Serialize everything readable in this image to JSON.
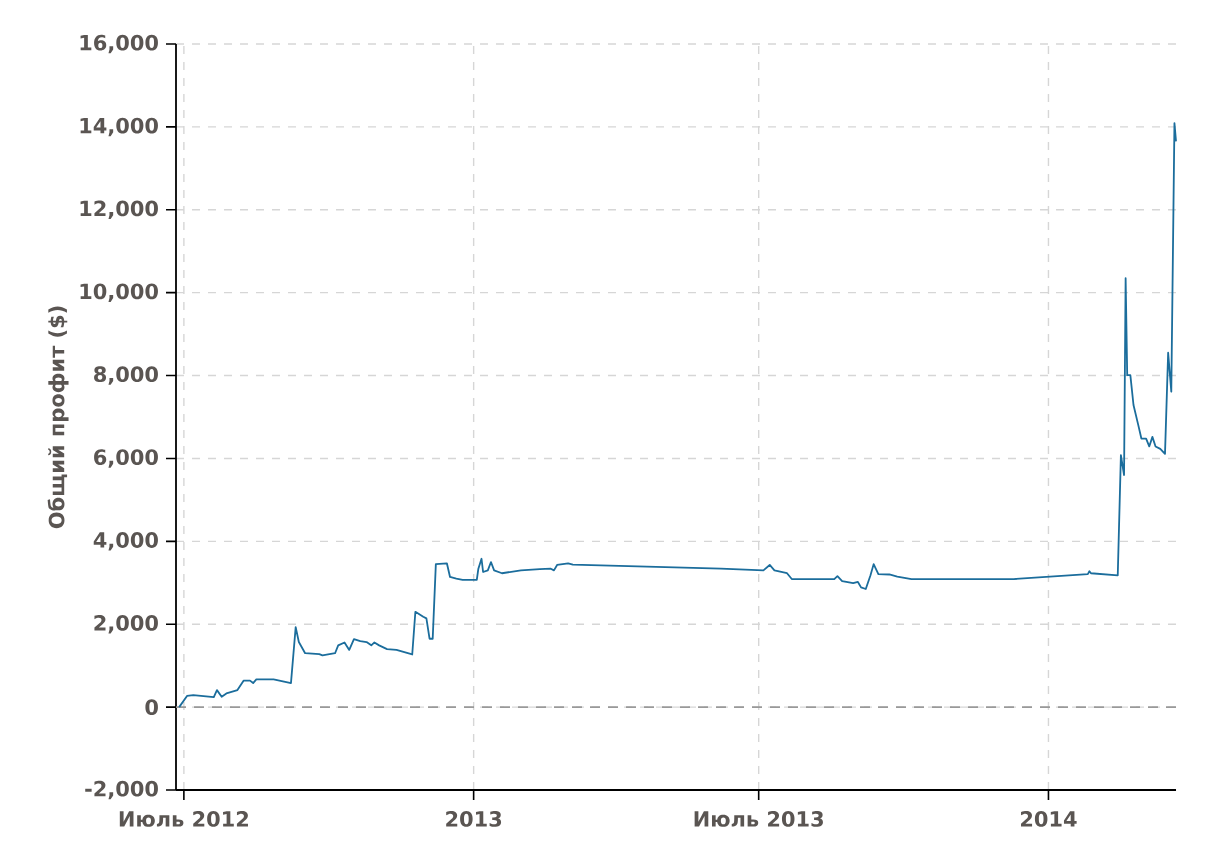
{
  "chart_data": {
    "type": "line",
    "ylabel": "Общий профит ($)",
    "color": "#1b6d9c",
    "x": [
      "2012-06-28",
      "2012-07-03",
      "2012-07-07",
      "2012-07-20",
      "2012-07-22",
      "2012-07-25",
      "2012-07-28",
      "2012-08-04",
      "2012-08-08",
      "2012-08-12",
      "2012-08-14",
      "2012-08-16",
      "2012-08-27",
      "2012-09-07",
      "2012-09-10",
      "2012-09-12",
      "2012-09-16",
      "2012-09-25",
      "2012-09-27",
      "2012-10-05",
      "2012-10-07",
      "2012-10-11",
      "2012-10-14",
      "2012-10-17",
      "2012-10-21",
      "2012-10-25",
      "2012-10-28",
      "2012-10-30",
      "2012-11-02",
      "2012-11-07",
      "2012-11-13",
      "2012-11-23",
      "2012-11-25",
      "2012-11-30",
      "2012-12-02",
      "2012-12-04",
      "2012-12-06",
      "2012-12-08",
      "2012-12-15",
      "2012-12-17",
      "2012-12-21",
      "2012-12-25",
      "2013-01-03",
      "2013-01-04",
      "2013-01-06",
      "2013-01-07",
      "2013-01-10",
      "2013-01-12",
      "2013-01-14",
      "2013-01-19",
      "2013-01-31",
      "2013-02-12",
      "2013-02-19",
      "2013-02-21",
      "2013-02-23",
      "2013-03-02",
      "2013-03-05",
      "2013-06-07",
      "2013-07-04",
      "2013-07-08",
      "2013-07-11",
      "2013-07-19",
      "2013-07-22",
      "2013-08-18",
      "2013-08-20",
      "2013-08-23",
      "2013-08-30",
      "2013-09-02",
      "2013-09-04",
      "2013-09-07",
      "2013-09-10",
      "2013-09-12",
      "2013-09-15",
      "2013-09-22",
      "2013-09-27",
      "2013-10-06",
      "2013-12-10",
      "2014-01-26",
      "2014-01-27",
      "2014-01-28",
      "2014-02-14",
      "2014-02-16",
      "2014-02-18",
      "2014-02-19",
      "2014-02-20",
      "2014-02-22",
      "2014-02-24",
      "2014-02-27",
      "2014-03-01",
      "2014-03-04",
      "2014-03-06",
      "2014-03-08",
      "2014-03-10",
      "2014-03-13",
      "2014-03-16",
      "2014-03-18",
      "2014-03-20",
      "2014-03-22",
      "2014-03-23"
    ],
    "values": [
      0,
      270,
      290,
      240,
      410,
      250,
      330,
      410,
      640,
      640,
      580,
      670,
      670,
      580,
      1930,
      1570,
      1300,
      1280,
      1250,
      1300,
      1490,
      1560,
      1380,
      1640,
      1590,
      1570,
      1490,
      1560,
      1490,
      1400,
      1380,
      1270,
      2300,
      2180,
      2140,
      1650,
      1650,
      3450,
      3470,
      3140,
      3100,
      3070,
      3070,
      3340,
      3580,
      3260,
      3300,
      3500,
      3300,
      3230,
      3300,
      3330,
      3340,
      3300,
      3430,
      3470,
      3440,
      3340,
      3300,
      3430,
      3300,
      3230,
      3090,
      3090,
      3160,
      3040,
      2990,
      3020,
      2890,
      2850,
      3180,
      3450,
      3210,
      3200,
      3150,
      3090,
      3090,
      3210,
      3280,
      3230,
      3180,
      6080,
      5600,
      10350,
      8010,
      8010,
      7290,
      6810,
      6480,
      6480,
      6290,
      6520,
      6290,
      6230,
      6110,
      8550,
      7610,
      14090,
      13650
    ],
    "xlim": [
      "2012-06-26",
      "2014-03-23"
    ],
    "xticks": [
      {
        "value": "2012-07-01",
        "label": "Июль 2012"
      },
      {
        "value": "2013-01-01",
        "label": "2013"
      },
      {
        "value": "2013-07-01",
        "label": "Июль 2013"
      },
      {
        "value": "2014-01-01",
        "label": "2014"
      }
    ],
    "ylim": [
      -2000,
      16000
    ],
    "yticks": [
      {
        "value": -2000,
        "label": "-2,000"
      },
      0,
      {
        "value": 2000,
        "label": "2,000"
      },
      {
        "value": 4000,
        "label": "4,000"
      },
      {
        "value": 6000,
        "label": "6,000"
      },
      {
        "value": 8000,
        "label": "8,000"
      },
      {
        "value": 10000,
        "label": "10,000"
      },
      {
        "value": 12000,
        "label": "12,000"
      },
      {
        "value": 14000,
        "label": "14,000"
      },
      {
        "value": 16000,
        "label": "16,000"
      }
    ],
    "grid": true,
    "ref_lines": [
      {
        "axis": "y",
        "value": 0,
        "color": "#999999",
        "line_style": "dashed"
      }
    ]
  }
}
